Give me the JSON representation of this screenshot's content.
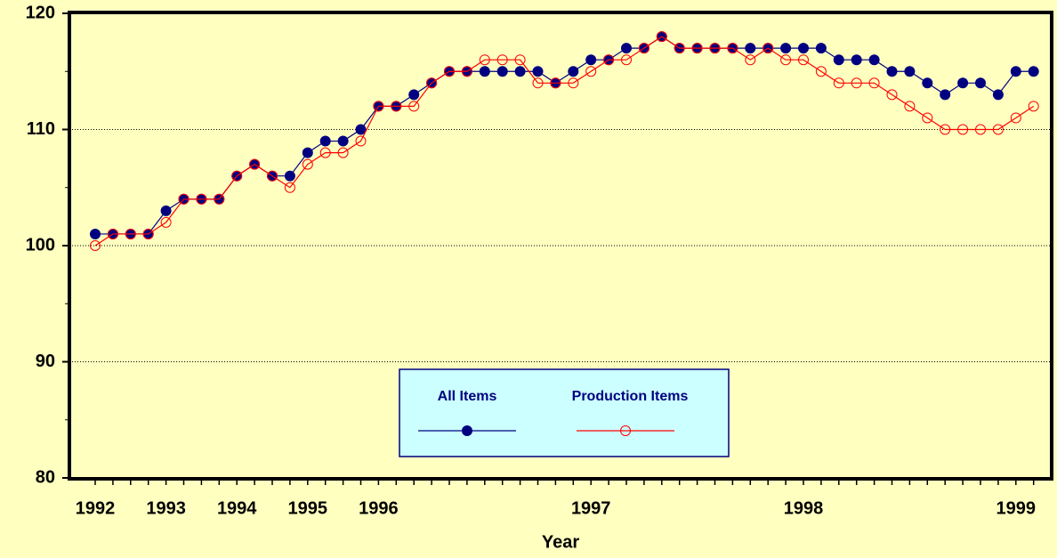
{
  "chart_data": {
    "type": "line",
    "x_label": "Year",
    "categories": [
      "1992",
      null,
      null,
      null,
      "1993",
      null,
      null,
      null,
      "1994",
      null,
      null,
      null,
      "1995",
      null,
      null,
      null,
      "1996",
      null,
      null,
      null,
      null,
      null,
      null,
      null,
      null,
      null,
      null,
      null,
      "1997",
      null,
      null,
      null,
      null,
      null,
      null,
      null,
      null,
      null,
      null,
      null,
      "1998",
      null,
      null,
      null,
      null,
      null,
      null,
      null,
      null,
      null,
      null,
      null,
      "1999",
      null
    ],
    "series": [
      {
        "name": "All Items",
        "color": "#000080",
        "marker": "filled",
        "values": [
          101,
          101,
          101,
          101,
          103,
          104,
          104,
          104,
          106,
          107,
          106,
          106,
          108,
          109,
          109,
          110,
          112,
          112,
          113,
          114,
          115,
          115,
          115,
          115,
          115,
          115,
          114,
          115,
          116,
          116,
          117,
          117,
          118,
          117,
          117,
          117,
          117,
          117,
          117,
          117,
          117,
          117,
          116,
          116,
          116,
          115,
          115,
          114,
          113,
          114,
          114,
          113,
          115,
          115
        ]
      },
      {
        "name": "Production Items",
        "color": "#ff0000",
        "marker": "open",
        "values": [
          100,
          101,
          101,
          101,
          102,
          104,
          104,
          104,
          106,
          107,
          106,
          105,
          107,
          108,
          108,
          109,
          112,
          112,
          112,
          114,
          115,
          115,
          116,
          116,
          116,
          114,
          114,
          114,
          115,
          116,
          116,
          117,
          118,
          117,
          117,
          117,
          117,
          116,
          117,
          116,
          116,
          115,
          114,
          114,
          114,
          113,
          112,
          111,
          110,
          110,
          110,
          110,
          111,
          112
        ]
      }
    ],
    "ylim": [
      80,
      120
    ],
    "yticks": [
      80,
      90,
      100,
      110,
      120
    ],
    "grid": true
  }
}
